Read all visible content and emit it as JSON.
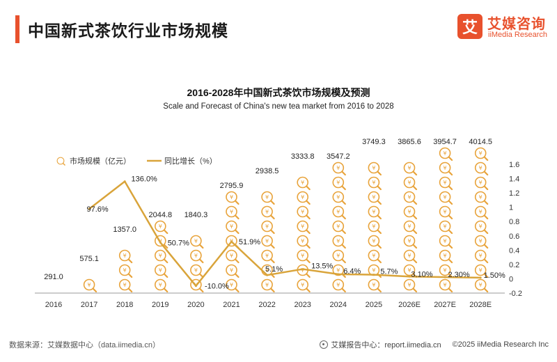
{
  "header": {
    "title": "中国新式茶饮行业市场规模"
  },
  "brand": {
    "logo_glyph": "艾",
    "name": "艾媒咨询",
    "name_en": "iiMedia Research",
    "color": "#e8512d"
  },
  "chart_data": {
    "type": "bar+line",
    "title": "2016-2028年中国新式茶饮市场规模及预测",
    "subtitle": "Scale and Forecast of China's new tea market from 2016 to 2028",
    "categories": [
      "2016",
      "2017",
      "2018",
      "2019",
      "2020",
      "2021",
      "2022",
      "2023",
      "2024",
      "2025",
      "2026E",
      "2027E",
      "2028E"
    ],
    "series": [
      {
        "name": "市场规模（亿元）",
        "kind": "pictogram",
        "values": [
          291.0,
          575.1,
          1357.0,
          2044.8,
          1840.3,
          2795.9,
          2938.5,
          3333.8,
          3547.2,
          3749.3,
          3865.6,
          3954.7,
          4014.5
        ],
        "labels": [
          "291.0",
          "575.1",
          "1357.0",
          "2044.8",
          "1840.3",
          "2795.9",
          "2938.5",
          "3333.8",
          "3547.2",
          "3749.3",
          "3865.6",
          "3954.7",
          "4014.5"
        ],
        "icon": "coin-magnifier-icon",
        "icon_color": "#e8a33a"
      },
      {
        "name": "同比增长（%）",
        "kind": "line",
        "values": [
          null,
          0.976,
          1.36,
          0.507,
          -0.1,
          0.519,
          0.051,
          0.135,
          0.064,
          0.057,
          0.031,
          0.023,
          0.015
        ],
        "labels": [
          "",
          "97.6%",
          "136.0%",
          "50.7%",
          "-10.0%",
          "51.9%",
          "5.1%",
          "13.5%",
          "6.4%",
          "5.7%",
          "3.10%",
          "2.30%",
          "1.50%"
        ],
        "color": "#d9a43a"
      }
    ],
    "y_right": {
      "min": -0.2,
      "max": 1.6,
      "ticks": [
        "1.6",
        "1.4",
        "1.2",
        "1",
        "0.8",
        "0.6",
        "0.4",
        "0.2",
        "0",
        "-0.2"
      ]
    },
    "legend_position": "top-left",
    "grid": false
  },
  "footer": {
    "source": "数据来源：艾媒数据中心（data.iimedia.cn）",
    "report": "艾媒报告中心：report.iimedia.cn",
    "copyright": "©2025  iiMedia Research  Inc"
  }
}
